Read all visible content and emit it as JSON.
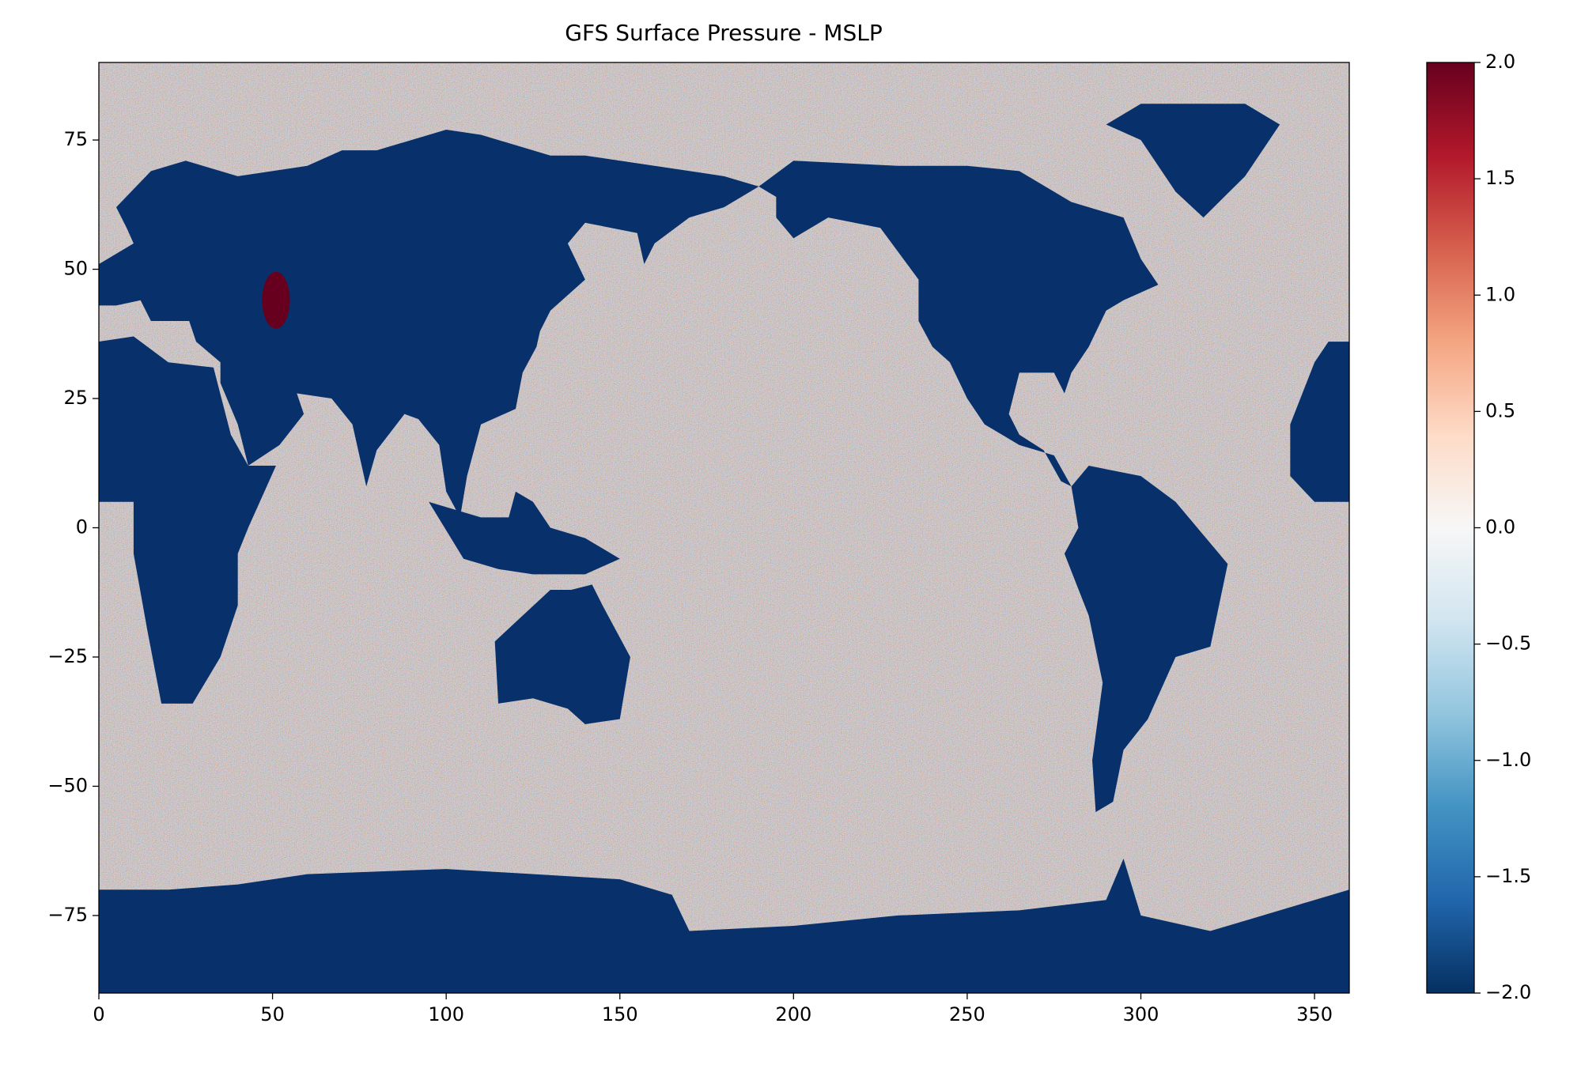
{
  "chart_data": {
    "type": "heatmap",
    "title": "GFS Surface Pressure - MSLP",
    "xlim": [
      0,
      360
    ],
    "xticks": [
      0,
      50,
      100,
      150,
      200,
      250,
      300,
      350
    ],
    "ylim": [
      -90,
      90
    ],
    "yticks": [
      {
        "value": -75,
        "label": "−75"
      },
      {
        "value": -50,
        "label": "−50"
      },
      {
        "value": -25,
        "label": "−25"
      },
      0,
      25,
      50,
      75
    ],
    "colorbar": {
      "lim": [
        -2,
        2
      ],
      "ticks": [
        {
          "value": -2,
          "label": "−2.0"
        },
        {
          "value": -1.5,
          "label": "−1.5"
        },
        {
          "value": -1,
          "label": "−1.0"
        },
        {
          "value": -0.5,
          "label": "−0.5"
        },
        {
          "value": 0,
          "label": "0.0"
        },
        {
          "value": 0.5,
          "label": "0.5"
        },
        {
          "value": 1,
          "label": "1.0"
        },
        {
          "value": 1.5,
          "label": "1.5"
        },
        {
          "value": 2,
          "label": "2.0"
        }
      ]
    }
  }
}
